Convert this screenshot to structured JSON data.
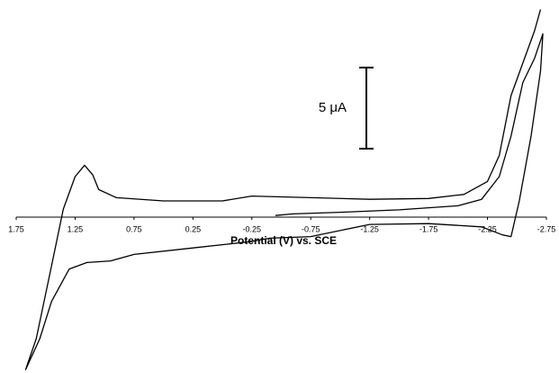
{
  "chart_data": {
    "type": "line",
    "x_label": "Potential (V) vs. SCE",
    "xlim": [
      1.75,
      -2.75
    ],
    "xticks": [
      1.75,
      1.25,
      0.75,
      0.25,
      -0.25,
      -0.75,
      -1.25,
      -1.75,
      -2.25,
      -2.75
    ],
    "ylim": [
      -9.5,
      13
    ],
    "scale_bar": {
      "label": "5 μA",
      "value": 5
    },
    "series": [
      {
        "color": "#000000",
        "x": [
          -0.45,
          -0.6,
          -1.0,
          -1.5,
          -2.0,
          -2.2,
          -2.35,
          -2.45,
          -2.55,
          -2.65,
          -2.72,
          -2.7,
          -2.62,
          -2.52,
          -2.45,
          -2.38,
          -2.2,
          -1.75,
          -1.25,
          -0.75,
          -0.4,
          -0.25,
          0.25,
          0.75,
          0.95,
          1.15,
          1.3,
          1.45,
          1.55,
          1.67,
          1.58,
          1.45,
          1.35,
          1.25,
          1.17,
          1.1,
          1.05,
          0.9,
          0.5,
          0.0,
          -0.25,
          -0.75,
          -1.25,
          -1.75,
          -2.05,
          -2.25,
          -2.35,
          -2.45,
          -2.55,
          -2.65,
          -2.7
        ],
        "values": [
          0.1,
          0.2,
          0.3,
          0.45,
          0.7,
          1.1,
          2.5,
          5.0,
          8.3,
          9.8,
          11.3,
          9.0,
          5.0,
          1.0,
          -1.2,
          -1.1,
          -0.6,
          -0.4,
          -0.45,
          -1.2,
          -1.3,
          -1.5,
          -1.9,
          -2.3,
          -2.7,
          -2.8,
          -3.2,
          -5.2,
          -7.5,
          -9.4,
          -7.5,
          -3.0,
          0.5,
          2.5,
          3.2,
          2.6,
          1.7,
          1.2,
          1.0,
          1.0,
          1.3,
          1.2,
          1.1,
          1.15,
          1.4,
          2.2,
          3.8,
          7.5,
          9.5,
          11.5,
          12.8
        ]
      }
    ]
  }
}
